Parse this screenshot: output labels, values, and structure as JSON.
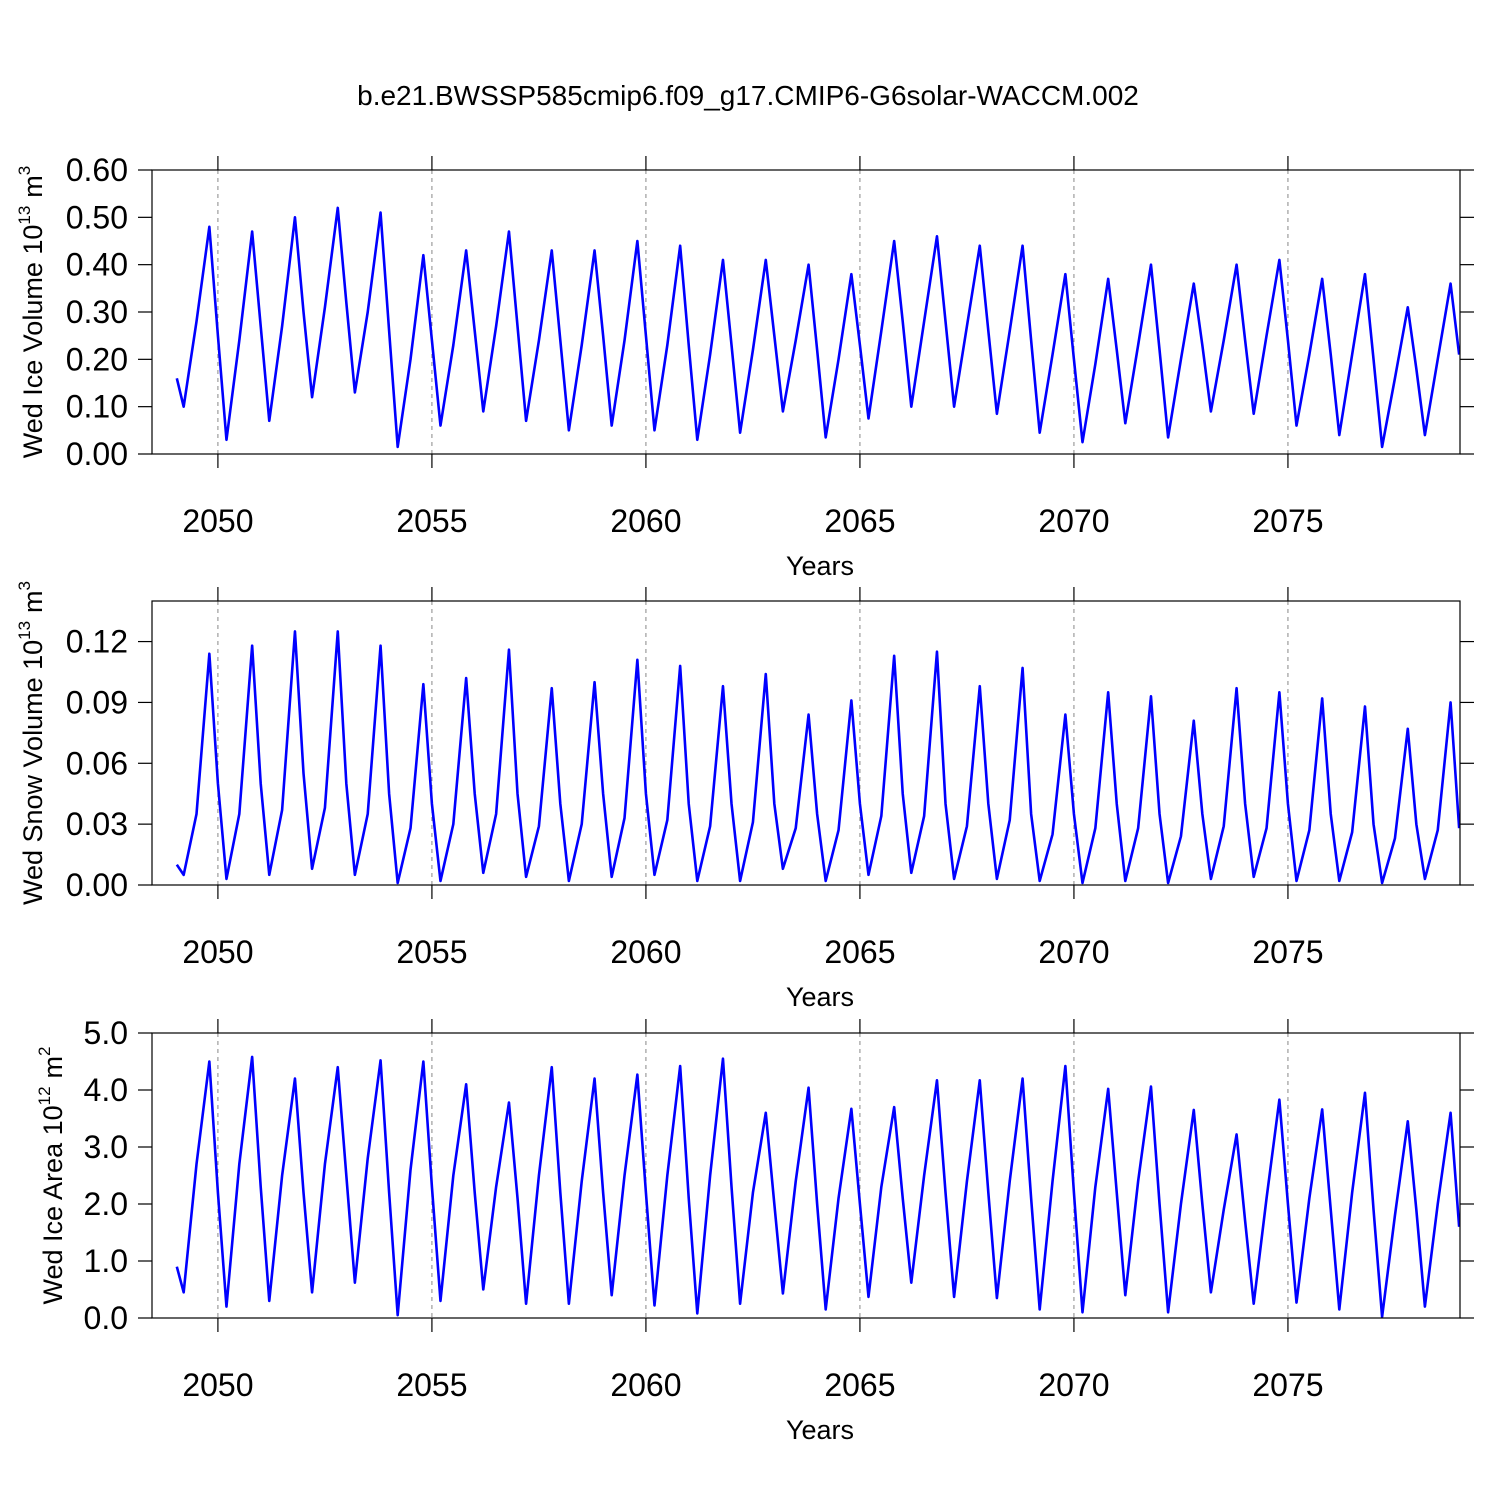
{
  "title": "b.e21.BWSSP585cmip6.f09_g17.CMIP6-G6solar-WACCM.002",
  "chart_data": [
    {
      "type": "line",
      "ylabel": [
        "Wed Ice Volume 10",
        "13",
        "m",
        "3"
      ],
      "xlabel": "Years",
      "color": "#0000ff",
      "grid": true,
      "xlim": [
        2048.46,
        2079.02
      ],
      "xticks": [
        2050,
        2055,
        2060,
        2065,
        2070,
        2075
      ],
      "ylim": [
        0,
        0.6
      ],
      "yticks": [
        {
          "value": 0,
          "label": "0.00"
        },
        {
          "value": 0.1,
          "label": "0.10"
        },
        {
          "value": 0.2,
          "label": "0.20"
        },
        {
          "value": 0.3,
          "label": "0.30"
        },
        {
          "value": 0.4,
          "label": "0.40"
        },
        {
          "value": 0.5,
          "label": "0.50"
        },
        {
          "value": 0.6,
          "label": "0.60"
        }
      ],
      "x": [
        2049.04,
        2049.2,
        2049.5,
        2049.8,
        2050.0,
        2050.2,
        2050.5,
        2050.8,
        2051.0,
        2051.2,
        2051.5,
        2051.8,
        2052.0,
        2052.2,
        2052.5,
        2052.8,
        2053.0,
        2053.2,
        2053.5,
        2053.8,
        2054.0,
        2054.2,
        2054.5,
        2054.8,
        2055.0,
        2055.2,
        2055.5,
        2055.8,
        2056.0,
        2056.2,
        2056.5,
        2056.8,
        2057.0,
        2057.2,
        2057.5,
        2057.8,
        2058.0,
        2058.2,
        2058.5,
        2058.8,
        2059.0,
        2059.2,
        2059.5,
        2059.8,
        2060.0,
        2060.2,
        2060.5,
        2060.8,
        2061.0,
        2061.2,
        2061.5,
        2061.8,
        2062.0,
        2062.2,
        2062.5,
        2062.8,
        2063.0,
        2063.2,
        2063.5,
        2063.8,
        2064.0,
        2064.2,
        2064.5,
        2064.8,
        2065.0,
        2065.2,
        2065.5,
        2065.8,
        2066.0,
        2066.2,
        2066.5,
        2066.8,
        2067.0,
        2067.2,
        2067.5,
        2067.8,
        2068.0,
        2068.2,
        2068.5,
        2068.8,
        2069.0,
        2069.2,
        2069.5,
        2069.8,
        2070.0,
        2070.2,
        2070.5,
        2070.8,
        2071.0,
        2071.2,
        2071.5,
        2071.8,
        2072.0,
        2072.2,
        2072.5,
        2072.8,
        2073.0,
        2073.2,
        2073.5,
        2073.8,
        2074.0,
        2074.2,
        2074.5,
        2074.8,
        2075.0,
        2075.2,
        2075.5,
        2075.8,
        2076.0,
        2076.2,
        2076.5,
        2076.8,
        2077.0,
        2077.2,
        2077.5,
        2077.8,
        2078.0,
        2078.2,
        2078.5,
        2078.8,
        2079.0
      ],
      "values": [
        0.16,
        0.1,
        0.28,
        0.48,
        0.25,
        0.03,
        0.24,
        0.47,
        0.27,
        0.07,
        0.27,
        0.5,
        0.3,
        0.12,
        0.31,
        0.52,
        0.32,
        0.13,
        0.3,
        0.51,
        0.26,
        0.015,
        0.2,
        0.42,
        0.24,
        0.06,
        0.23,
        0.43,
        0.26,
        0.09,
        0.27,
        0.47,
        0.27,
        0.07,
        0.24,
        0.43,
        0.24,
        0.05,
        0.23,
        0.43,
        0.25,
        0.06,
        0.24,
        0.45,
        0.25,
        0.05,
        0.23,
        0.44,
        0.23,
        0.03,
        0.21,
        0.41,
        0.23,
        0.045,
        0.22,
        0.41,
        0.25,
        0.09,
        0.24,
        0.4,
        0.22,
        0.035,
        0.2,
        0.38,
        0.23,
        0.075,
        0.26,
        0.45,
        0.28,
        0.1,
        0.28,
        0.46,
        0.28,
        0.1,
        0.27,
        0.44,
        0.26,
        0.085,
        0.26,
        0.44,
        0.24,
        0.045,
        0.21,
        0.38,
        0.2,
        0.025,
        0.19,
        0.37,
        0.22,
        0.065,
        0.23,
        0.4,
        0.22,
        0.035,
        0.2,
        0.36,
        0.23,
        0.09,
        0.24,
        0.4,
        0.24,
        0.085,
        0.25,
        0.41,
        0.24,
        0.06,
        0.21,
        0.37,
        0.21,
        0.04,
        0.21,
        0.38,
        0.2,
        0.015,
        0.16,
        0.31,
        0.18,
        0.04,
        0.2,
        0.36,
        0.21
      ]
    },
    {
      "type": "line",
      "ylabel": [
        "Wed Snow Volume 10",
        "13",
        "m",
        "3"
      ],
      "xlabel": "Years",
      "color": "#0000ff",
      "grid": true,
      "xlim": [
        2048.46,
        2079.02
      ],
      "xticks": [
        2050,
        2055,
        2060,
        2065,
        2070,
        2075
      ],
      "ylim": [
        0,
        0.14
      ],
      "yticks": [
        {
          "value": 0,
          "label": "0.00"
        },
        {
          "value": 0.03,
          "label": "0.03"
        },
        {
          "value": 0.06,
          "label": "0.06"
        },
        {
          "value": 0.09,
          "label": "0.09"
        },
        {
          "value": 0.12,
          "label": "0.12"
        }
      ],
      "x": [
        2049.04,
        2049.2,
        2049.5,
        2049.8,
        2050.0,
        2050.2,
        2050.5,
        2050.8,
        2051.0,
        2051.2,
        2051.5,
        2051.8,
        2052.0,
        2052.2,
        2052.5,
        2052.8,
        2053.0,
        2053.2,
        2053.5,
        2053.8,
        2054.0,
        2054.2,
        2054.5,
        2054.8,
        2055.0,
        2055.2,
        2055.5,
        2055.8,
        2056.0,
        2056.2,
        2056.5,
        2056.8,
        2057.0,
        2057.2,
        2057.5,
        2057.8,
        2058.0,
        2058.2,
        2058.5,
        2058.8,
        2059.0,
        2059.2,
        2059.5,
        2059.8,
        2060.0,
        2060.2,
        2060.5,
        2060.8,
        2061.0,
        2061.2,
        2061.5,
        2061.8,
        2062.0,
        2062.2,
        2062.5,
        2062.8,
        2063.0,
        2063.2,
        2063.5,
        2063.8,
        2064.0,
        2064.2,
        2064.5,
        2064.8,
        2065.0,
        2065.2,
        2065.5,
        2065.8,
        2066.0,
        2066.2,
        2066.5,
        2066.8,
        2067.0,
        2067.2,
        2067.5,
        2067.8,
        2068.0,
        2068.2,
        2068.5,
        2068.8,
        2069.0,
        2069.2,
        2069.5,
        2069.8,
        2070.0,
        2070.2,
        2070.5,
        2070.8,
        2071.0,
        2071.2,
        2071.5,
        2071.8,
        2072.0,
        2072.2,
        2072.5,
        2072.8,
        2073.0,
        2073.2,
        2073.5,
        2073.8,
        2074.0,
        2074.2,
        2074.5,
        2074.8,
        2075.0,
        2075.2,
        2075.5,
        2075.8,
        2076.0,
        2076.2,
        2076.5,
        2076.8,
        2077.0,
        2077.2,
        2077.5,
        2077.8,
        2078.0,
        2078.2,
        2078.5,
        2078.8,
        2079.0
      ],
      "values": [
        0.01,
        0.005,
        0.035,
        0.114,
        0.05,
        0.003,
        0.035,
        0.118,
        0.05,
        0.005,
        0.037,
        0.125,
        0.055,
        0.008,
        0.038,
        0.125,
        0.05,
        0.005,
        0.035,
        0.118,
        0.045,
        0.001,
        0.028,
        0.099,
        0.04,
        0.002,
        0.03,
        0.102,
        0.045,
        0.006,
        0.035,
        0.116,
        0.045,
        0.004,
        0.029,
        0.097,
        0.04,
        0.002,
        0.03,
        0.1,
        0.045,
        0.004,
        0.033,
        0.111,
        0.045,
        0.005,
        0.032,
        0.108,
        0.04,
        0.002,
        0.029,
        0.098,
        0.04,
        0.002,
        0.031,
        0.104,
        0.04,
        0.008,
        0.028,
        0.084,
        0.035,
        0.002,
        0.027,
        0.091,
        0.04,
        0.005,
        0.034,
        0.113,
        0.045,
        0.006,
        0.034,
        0.115,
        0.04,
        0.003,
        0.029,
        0.098,
        0.04,
        0.003,
        0.032,
        0.107,
        0.035,
        0.002,
        0.025,
        0.084,
        0.035,
        0.001,
        0.028,
        0.095,
        0.04,
        0.002,
        0.028,
        0.093,
        0.035,
        0.001,
        0.024,
        0.081,
        0.035,
        0.003,
        0.029,
        0.097,
        0.04,
        0.004,
        0.028,
        0.095,
        0.04,
        0.002,
        0.027,
        0.092,
        0.035,
        0.002,
        0.026,
        0.088,
        0.03,
        0.001,
        0.023,
        0.077,
        0.03,
        0.003,
        0.027,
        0.09,
        0.028
      ]
    },
    {
      "type": "line",
      "ylabel": [
        "Wed Ice Area 10",
        "12",
        "m",
        "2"
      ],
      "xlabel": "Years",
      "color": "#0000ff",
      "grid": true,
      "xlim": [
        2048.46,
        2079.02
      ],
      "xticks": [
        2050,
        2055,
        2060,
        2065,
        2070,
        2075
      ],
      "ylim": [
        0,
        5
      ],
      "yticks": [
        {
          "value": 0,
          "label": "0.0"
        },
        {
          "value": 1,
          "label": "1.0"
        },
        {
          "value": 2,
          "label": "2.0"
        },
        {
          "value": 3,
          "label": "3.0"
        },
        {
          "value": 4,
          "label": "4.0"
        },
        {
          "value": 5,
          "label": "5.0"
        }
      ],
      "x": [
        2049.04,
        2049.2,
        2049.5,
        2049.8,
        2050.0,
        2050.2,
        2050.5,
        2050.8,
        2051.0,
        2051.2,
        2051.5,
        2051.8,
        2052.0,
        2052.2,
        2052.5,
        2052.8,
        2053.0,
        2053.2,
        2053.5,
        2053.8,
        2054.0,
        2054.2,
        2054.5,
        2054.8,
        2055.0,
        2055.2,
        2055.5,
        2055.8,
        2056.0,
        2056.2,
        2056.5,
        2056.8,
        2057.0,
        2057.2,
        2057.5,
        2057.8,
        2058.0,
        2058.2,
        2058.5,
        2058.8,
        2059.0,
        2059.2,
        2059.5,
        2059.8,
        2060.0,
        2060.2,
        2060.5,
        2060.8,
        2061.0,
        2061.2,
        2061.5,
        2061.8,
        2062.0,
        2062.2,
        2062.5,
        2062.8,
        2063.0,
        2063.2,
        2063.5,
        2063.8,
        2064.0,
        2064.2,
        2064.5,
        2064.8,
        2065.0,
        2065.2,
        2065.5,
        2065.8,
        2066.0,
        2066.2,
        2066.5,
        2066.8,
        2067.0,
        2067.2,
        2067.5,
        2067.8,
        2068.0,
        2068.2,
        2068.5,
        2068.8,
        2069.0,
        2069.2,
        2069.5,
        2069.8,
        2070.0,
        2070.2,
        2070.5,
        2070.8,
        2071.0,
        2071.2,
        2071.5,
        2071.8,
        2072.0,
        2072.2,
        2072.5,
        2072.8,
        2073.0,
        2073.2,
        2073.5,
        2073.8,
        2074.0,
        2074.2,
        2074.5,
        2074.8,
        2075.0,
        2075.2,
        2075.5,
        2075.8,
        2076.0,
        2076.2,
        2076.5,
        2076.8,
        2077.0,
        2077.2,
        2077.5,
        2077.8,
        2078.0,
        2078.2,
        2078.5,
        2078.8,
        2079.0
      ],
      "values": [
        0.9,
        0.45,
        2.7,
        4.5,
        2.2,
        0.2,
        2.7,
        4.58,
        2.3,
        0.3,
        2.5,
        4.2,
        2.2,
        0.45,
        2.7,
        4.4,
        2.5,
        0.62,
        2.8,
        4.52,
        2.2,
        0.05,
        2.6,
        4.5,
        2.3,
        0.3,
        2.5,
        4.1,
        2.2,
        0.5,
        2.3,
        3.78,
        2.1,
        0.25,
        2.5,
        4.4,
        2.2,
        0.25,
        2.4,
        4.2,
        2.2,
        0.4,
        2.5,
        4.27,
        2.2,
        0.22,
        2.5,
        4.42,
        2.1,
        0.08,
        2.5,
        4.55,
        2.3,
        0.25,
        2.2,
        3.6,
        2.0,
        0.43,
        2.4,
        4.04,
        2.0,
        0.15,
        2.1,
        3.67,
        2.0,
        0.37,
        2.3,
        3.7,
        2.1,
        0.62,
        2.5,
        4.17,
        2.2,
        0.37,
        2.4,
        4.17,
        2.2,
        0.35,
        2.4,
        4.2,
        2.1,
        0.15,
        2.4,
        4.42,
        2.2,
        0.1,
        2.3,
        4.02,
        2.2,
        0.4,
        2.4,
        4.06,
        2.0,
        0.1,
        2.0,
        3.65,
        2.0,
        0.45,
        1.9,
        3.22,
        1.7,
        0.25,
        2.1,
        3.83,
        2.0,
        0.27,
        2.1,
        3.66,
        1.9,
        0.15,
        2.2,
        3.95,
        1.9,
        0.02,
        1.8,
        3.45,
        1.9,
        0.2,
        2.0,
        3.6,
        1.6
      ]
    }
  ]
}
